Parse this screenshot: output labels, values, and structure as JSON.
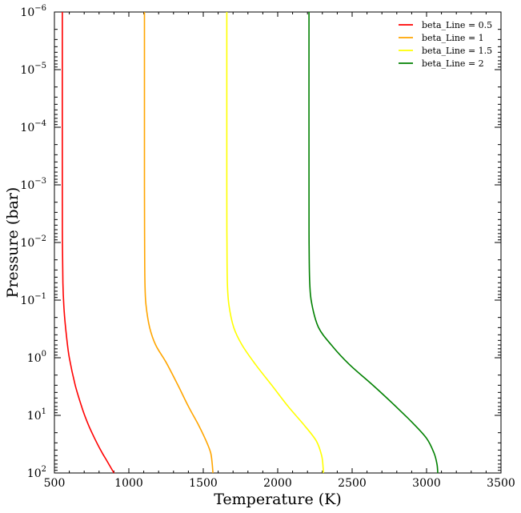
{
  "chart_data": {
    "type": "line",
    "xlabel": "Temperature (K)",
    "ylabel": "Pressure (bar)",
    "xlim": [
      500,
      3500
    ],
    "ylim": [
      100,
      1e-06
    ],
    "yscale": "log",
    "x_ticks": [
      "500",
      "1000",
      "1500",
      "2000",
      "2500",
      "3000",
      "3500"
    ],
    "y_ticks": [
      {
        "base": "10",
        "exp": "−6"
      },
      {
        "base": "10",
        "exp": "−5"
      },
      {
        "base": "10",
        "exp": "−4"
      },
      {
        "base": "10",
        "exp": "−3"
      },
      {
        "base": "10",
        "exp": "−2"
      },
      {
        "base": "10",
        "exp": "−1"
      },
      {
        "base": "10",
        "exp": "0"
      },
      {
        "base": "10",
        "exp": "1"
      },
      {
        "base": "10",
        "exp": "2"
      }
    ],
    "legend_position": "top-right",
    "series": [
      {
        "name": "beta_Line = 0.5",
        "color": "#ff0000",
        "points": [
          [
            553,
            1e-06
          ],
          [
            553,
            0.001
          ],
          [
            554,
            0.01
          ],
          [
            557,
            0.05
          ],
          [
            565,
            0.15
          ],
          [
            580,
            0.4
          ],
          [
            600,
            1
          ],
          [
            640,
            3
          ],
          [
            690,
            8
          ],
          [
            730,
            15
          ],
          [
            770,
            25
          ],
          [
            810,
            40
          ],
          [
            850,
            60
          ],
          [
            900,
            100
          ]
        ]
      },
      {
        "name": "beta_Line = 1",
        "color": "#ffa500",
        "points": [
          [
            1105,
            1e-06
          ],
          [
            1105,
            0.001
          ],
          [
            1106,
            0.01
          ],
          [
            1108,
            0.05
          ],
          [
            1115,
            0.12
          ],
          [
            1140,
            0.3
          ],
          [
            1180,
            0.6
          ],
          [
            1250,
            1.2
          ],
          [
            1330,
            3
          ],
          [
            1400,
            7
          ],
          [
            1470,
            15
          ],
          [
            1520,
            28
          ],
          [
            1550,
            45
          ],
          [
            1560,
            70
          ],
          [
            1565,
            100
          ]
        ]
      },
      {
        "name": "beta_Line = 1.5",
        "color": "#ffff00",
        "points": [
          [
            1658,
            1e-06
          ],
          [
            1658,
            0.001
          ],
          [
            1659,
            0.01
          ],
          [
            1662,
            0.05
          ],
          [
            1672,
            0.12
          ],
          [
            1705,
            0.3
          ],
          [
            1760,
            0.6
          ],
          [
            1850,
            1.3
          ],
          [
            1960,
            3
          ],
          [
            2070,
            7
          ],
          [
            2180,
            15
          ],
          [
            2260,
            28
          ],
          [
            2295,
            50
          ],
          [
            2305,
            80
          ],
          [
            2306,
            100
          ]
        ]
      },
      {
        "name": "beta_Line = 2",
        "color": "#008000",
        "points": [
          [
            2210,
            1e-06
          ],
          [
            2210,
            0.001
          ],
          [
            2211,
            0.01
          ],
          [
            2215,
            0.05
          ],
          [
            2230,
            0.12
          ],
          [
            2275,
            0.3
          ],
          [
            2360,
            0.6
          ],
          [
            2480,
            1.3
          ],
          [
            2640,
            3
          ],
          [
            2780,
            6.5
          ],
          [
            2900,
            13
          ],
          [
            3000,
            25
          ],
          [
            3050,
            45
          ],
          [
            3070,
            70
          ],
          [
            3075,
            100
          ]
        ]
      }
    ]
  }
}
